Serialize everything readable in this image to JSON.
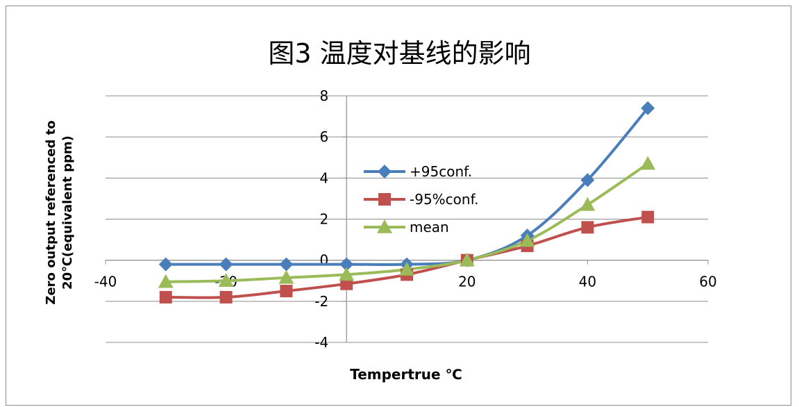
{
  "chart_data": {
    "type": "line",
    "title": "图3 温度对基线的影响",
    "xlabel": "Tempertrue ℃",
    "ylabel_lines": [
      "Zero output referenced to",
      "20℃(equivalent ppm)"
    ],
    "xlim": [
      -40,
      60
    ],
    "ylim": [
      -4,
      8
    ],
    "x_ticks": [
      -40,
      -20,
      0,
      20,
      40,
      60
    ],
    "y_ticks": [
      -4,
      -2,
      0,
      2,
      4,
      6,
      8
    ],
    "grid": "horizontal",
    "legend_position": "center",
    "x": [
      -30,
      -20,
      -10,
      0,
      10,
      20,
      30,
      40,
      50
    ],
    "series": [
      {
        "name": "+95conf.",
        "marker": "diamond",
        "color": "#4a7ebb",
        "values": [
          -0.2,
          -0.2,
          -0.2,
          -0.2,
          -0.2,
          0,
          1.2,
          3.9,
          7.4
        ]
      },
      {
        "name": "-95%conf.",
        "marker": "square",
        "color": "#c0504d",
        "values": [
          -1.8,
          -1.8,
          -1.5,
          -1.15,
          -0.7,
          0,
          0.7,
          1.6,
          2.1
        ]
      },
      {
        "name": "mean",
        "marker": "triangle",
        "color": "#9bbb59",
        "values": [
          -1.05,
          -1.0,
          -0.85,
          -0.7,
          -0.45,
          0,
          0.95,
          2.7,
          4.7
        ]
      }
    ]
  }
}
